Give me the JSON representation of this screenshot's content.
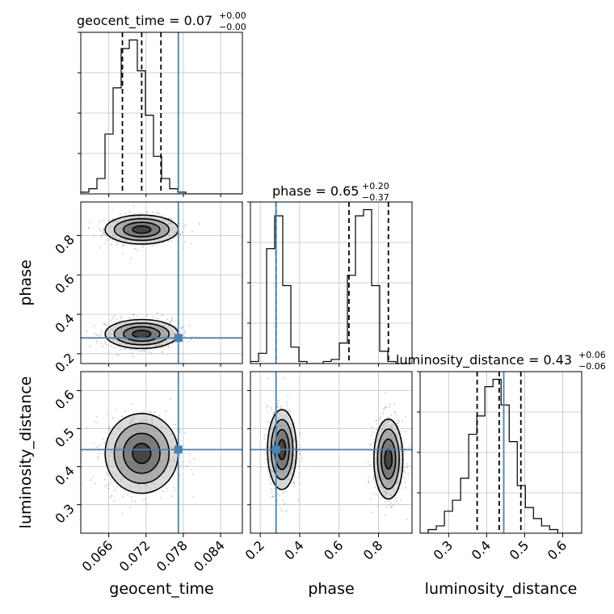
{
  "colors": {
    "truth": "#4682b4",
    "hist": "#000000",
    "grid": "#c0c0c0",
    "scatter": "#808080"
  },
  "chart_data": {
    "type": "corner",
    "parameters": [
      {
        "name": "geocent_time",
        "label": "geocent_time",
        "range": [
          0.0615,
          0.0875
        ],
        "ticks": [
          0.066,
          0.072,
          0.078,
          0.084
        ],
        "tick_labels": [
          "0.066",
          "0.072",
          "0.078",
          "0.084"
        ],
        "truth": 0.0772,
        "quantiles": [
          0.0682,
          0.0713,
          0.0744
        ],
        "title_main": "geocent_time = 0.07",
        "title_plus": "+0.00",
        "title_minus": "−0.00",
        "hist_edges_start": 0.0615,
        "hist_bin_width": 0.0013,
        "hist": [
          1,
          3,
          9,
          35,
          62,
          85,
          90,
          72,
          46,
          22,
          9,
          3,
          1,
          0,
          0,
          0,
          0,
          0,
          0,
          0
        ]
      },
      {
        "name": "phase",
        "label": "phase",
        "range": [
          0.15,
          0.97
        ],
        "ticks": [
          0.2,
          0.4,
          0.6,
          0.8
        ],
        "tick_labels": [
          "0.2",
          "0.4",
          "0.6",
          "0.8"
        ],
        "truth": 0.28,
        "quantiles": [
          0.28,
          0.65,
          0.85
        ],
        "title_main": "phase = 0.65",
        "title_plus": "+0.20",
        "title_minus": "−0.37",
        "hist_edges_start": 0.15,
        "hist_bin_width": 0.041,
        "hist": [
          1,
          5,
          56,
          72,
          38,
          8,
          1,
          0,
          0,
          1,
          2,
          10,
          43,
          72,
          75,
          38,
          6,
          1,
          0,
          0
        ]
      },
      {
        "name": "luminosity_distance",
        "label": "luminosity_distance",
        "range": [
          0.225,
          0.65
        ],
        "ticks": [
          0.3,
          0.4,
          0.5,
          0.6
        ],
        "tick_labels": [
          "0.3",
          "0.4",
          "0.5",
          "0.6"
        ],
        "truth": 0.445,
        "quantiles": [
          0.375,
          0.433,
          0.49
        ],
        "title_main": "luminosity_distance = 0.43",
        "title_plus": "+0.06",
        "title_minus": "−0.06",
        "hist_edges_start": 0.225,
        "hist_bin_width": 0.0213,
        "hist": [
          0,
          1,
          2,
          6,
          9,
          15,
          27,
          32,
          40,
          42,
          35,
          25,
          13,
          7,
          4,
          2,
          1,
          0,
          0,
          0
        ]
      }
    ],
    "y_tick_labels": {
      "phase": [
        "0.2",
        "0.4",
        "0.6",
        "0.8"
      ],
      "luminosity_distance": [
        "0.3",
        "0.4",
        "0.5",
        "0.6"
      ]
    },
    "clusters_2d": {
      "geocent_time_vs_phase": [
        {
          "center": [
            0.0713,
            0.83
          ],
          "sigma": [
            0.0028,
            0.035
          ]
        },
        {
          "center": [
            0.0713,
            0.3
          ],
          "sigma": [
            0.0028,
            0.035
          ]
        }
      ],
      "geocent_time_vs_luminosity_distance": [
        {
          "center": [
            0.0713,
            0.435
          ],
          "sigma": [
            0.0028,
            0.05
          ]
        }
      ],
      "phase_vs_luminosity_distance": [
        {
          "center": [
            0.31,
            0.445
          ],
          "sigma": [
            0.035,
            0.05
          ]
        },
        {
          "center": [
            0.85,
            0.42
          ],
          "sigma": [
            0.035,
            0.05
          ]
        }
      ]
    },
    "contour_levels_sigma": [
      0.5,
      1.0,
      1.5,
      2.0
    ],
    "grid": true
  }
}
